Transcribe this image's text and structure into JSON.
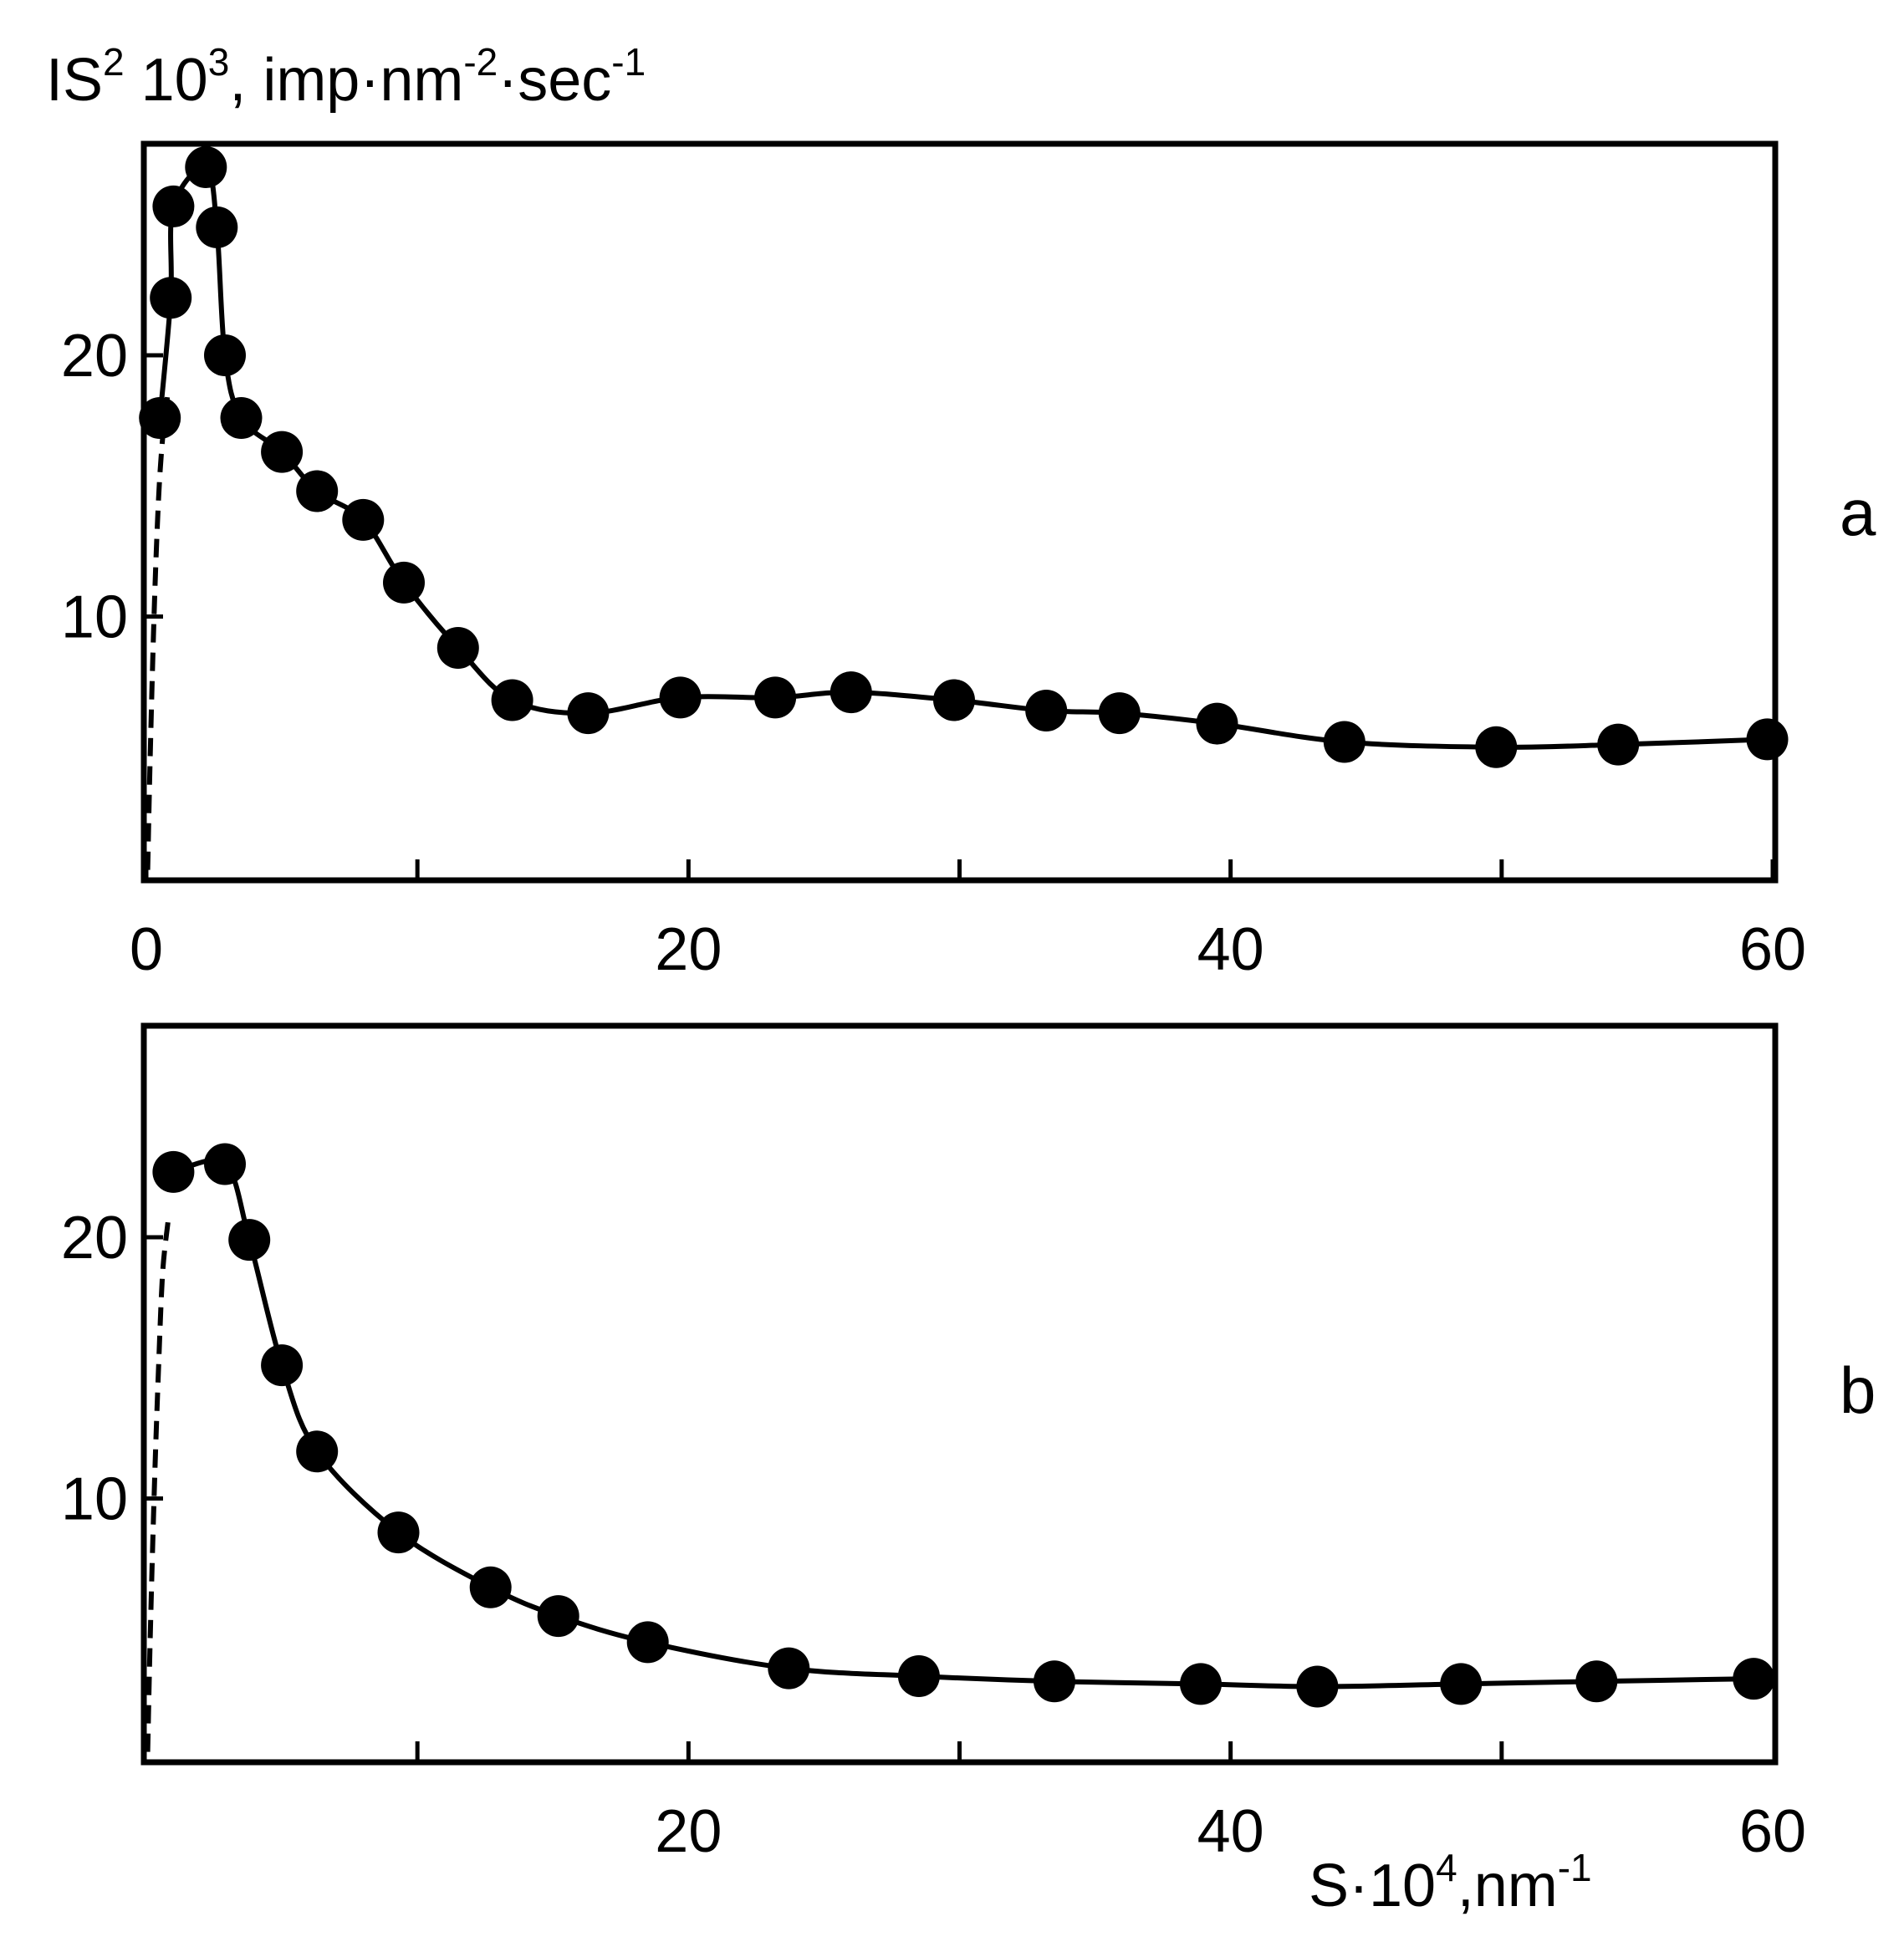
{
  "chart_data": [
    {
      "type": "scatter",
      "panel_label": "a",
      "ylabel": {
        "base": "IS",
        "sup1": "2",
        "mid": " 10",
        "sup2": "3",
        "rest": ", imp·nm",
        "sup3": "-2",
        "rest2": "·sec",
        "sup4": "-1"
      },
      "xlabel": null,
      "xlim": [
        0,
        60
      ],
      "ylim": [
        0,
        28
      ],
      "xticks": [
        0,
        10,
        20,
        30,
        40,
        50,
        60
      ],
      "xtick_labels": [
        "0",
        "",
        "20",
        "",
        "40",
        "",
        "60"
      ],
      "yticks": [
        10,
        20
      ],
      "ytick_labels": [
        "10",
        "20"
      ],
      "grid": false,
      "series": [
        {
          "style": "markers+solid-line",
          "x": [
            0.5,
            0.9,
            1.0,
            2.2,
            2.6,
            2.9,
            3.5,
            5.0,
            6.3,
            8.0,
            9.5,
            11.5,
            13.5,
            16.3,
            19.7,
            23.2,
            26.0,
            29.8,
            33.2,
            35.9,
            39.5,
            44.2,
            49.8,
            54.3,
            59.8
          ],
          "y": [
            17.6,
            22.2,
            25.7,
            27.2,
            24.9,
            20.0,
            17.6,
            16.3,
            14.8,
            13.7,
            11.3,
            8.8,
            6.8,
            6.3,
            6.9,
            6.9,
            7.1,
            6.8,
            6.4,
            6.3,
            5.9,
            5.2,
            5.0,
            5.1,
            5.3
          ]
        }
      ],
      "dashed_extrapolation": {
        "x": [
          0.05,
          0.15,
          0.3,
          0.45,
          0.6,
          0.8
        ],
        "y": [
          0.3,
          5.0,
          10.5,
          14.5,
          16.8,
          18.6
        ]
      }
    },
    {
      "type": "scatter",
      "panel_label": "b",
      "xlabel": {
        "base": "S·10",
        "sup": "4",
        "rest": ",nm",
        "sup2": "-1"
      },
      "xlim": [
        0,
        60
      ],
      "ylim": [
        0,
        28
      ],
      "xticks": [
        10,
        20,
        30,
        40,
        50
      ],
      "xtick_labels": [
        "",
        "20",
        "",
        "40",
        ""
      ],
      "extra_xtick_labels": [
        {
          "x": 60,
          "label": "60"
        }
      ],
      "yticks": [
        10,
        20
      ],
      "ytick_labels": [
        "10",
        "20"
      ],
      "grid": false,
      "series": [
        {
          "style": "markers+solid-line",
          "x": [
            1.0,
            2.9,
            3.8,
            5.0,
            6.3,
            9.3,
            12.7,
            15.2,
            18.5,
            23.7,
            28.5,
            33.5,
            38.9,
            43.2,
            48.5,
            53.5,
            59.3
          ],
          "y": [
            22.5,
            22.8,
            19.9,
            15.1,
            11.8,
            8.7,
            6.6,
            5.5,
            4.5,
            3.5,
            3.2,
            3.0,
            2.9,
            2.8,
            2.9,
            3.0,
            3.1
          ]
        }
      ],
      "dashed_extrapolation": {
        "x": [
          0.05,
          0.15,
          0.3,
          0.45,
          0.6,
          0.8
        ],
        "y": [
          0.3,
          5.0,
          10.5,
          15.0,
          18.6,
          20.6
        ]
      }
    }
  ]
}
